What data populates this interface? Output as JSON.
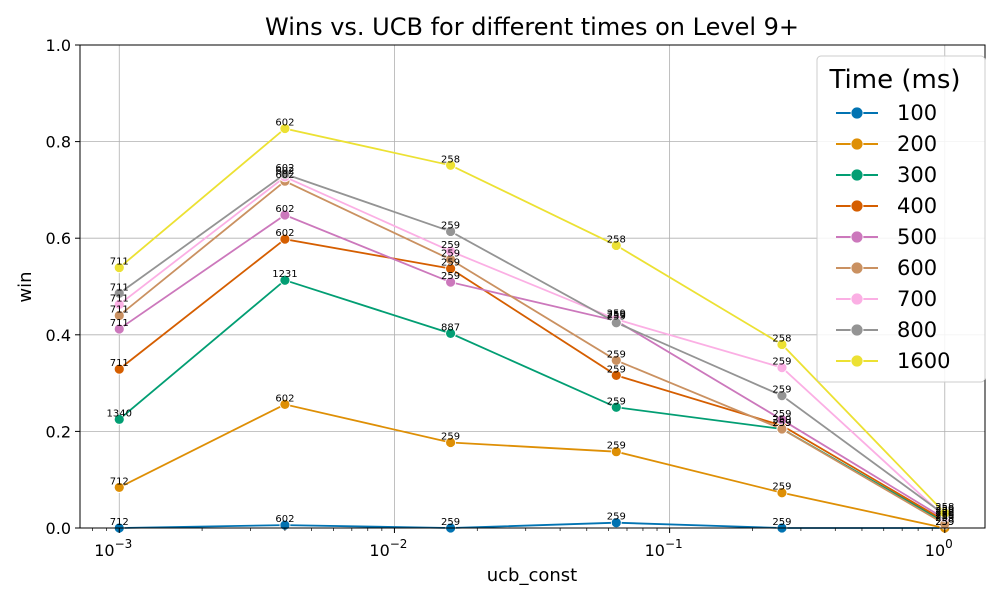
{
  "chart_data": {
    "type": "line",
    "title": "Wins vs. UCB for different times on Level 9+",
    "xlabel": "ucb_const",
    "ylabel": "win",
    "xscale": "log",
    "xlim": [
      0.00072,
      1.4
    ],
    "ylim": [
      0,
      1
    ],
    "grid": true,
    "legend": {
      "title": "Time (ms)",
      "placement": "top-right"
    },
    "x": [
      0.001,
      0.004,
      0.016,
      0.064,
      0.256,
      1.0
    ],
    "xticks": [
      {
        "value": 0.001,
        "base": "10",
        "exp": "−3"
      },
      {
        "value": 0.01,
        "base": "10",
        "exp": "−2"
      },
      {
        "value": 0.1,
        "base": "10",
        "exp": "−1"
      },
      {
        "value": 1,
        "base": "10",
        "exp": "0"
      }
    ],
    "yticks": [
      {
        "value": 0.0,
        "label": "0.0"
      },
      {
        "value": 0.2,
        "label": "0.2"
      },
      {
        "value": 0.4,
        "label": "0.4"
      },
      {
        "value": 0.6,
        "label": "0.6"
      },
      {
        "value": 0.8,
        "label": "0.8"
      },
      {
        "value": 1.0,
        "label": "1.0"
      }
    ],
    "series": [
      {
        "name": "100",
        "color": "#0173b2",
        "values": [
          0.0,
          0.006,
          0.0,
          0.011,
          0.0,
          0.0
        ],
        "labels": [
          "712",
          "602",
          "259",
          "259",
          "259",
          "259"
        ]
      },
      {
        "name": "200",
        "color": "#de8f05",
        "values": [
          0.084,
          0.256,
          0.177,
          0.158,
          0.073,
          0.0
        ],
        "labels": [
          "712",
          "602",
          "259",
          "259",
          "259",
          "259"
        ]
      },
      {
        "name": "300",
        "color": "#029e73",
        "values": [
          0.225,
          0.513,
          0.403,
          0.25,
          0.205,
          0.012
        ],
        "labels": [
          "1340",
          "1231",
          "887",
          "259",
          "259",
          "259"
        ]
      },
      {
        "name": "400",
        "color": "#d55e00",
        "values": [
          0.329,
          0.598,
          0.537,
          0.316,
          0.212,
          0.015
        ],
        "labels": [
          "711",
          "602",
          "259",
          "259",
          "259",
          "259"
        ]
      },
      {
        "name": "500",
        "color": "#cc78bc",
        "values": [
          0.412,
          0.648,
          0.509,
          0.429,
          0.224,
          0.019
        ],
        "labels": [
          "711",
          "602",
          "259",
          "259",
          "259",
          "259"
        ]
      },
      {
        "name": "600",
        "color": "#ca9161",
        "values": [
          0.44,
          0.718,
          0.556,
          0.347,
          0.205,
          0.008
        ],
        "labels": [
          "711",
          "602",
          "259",
          "259",
          "259",
          "259"
        ]
      },
      {
        "name": "700",
        "color": "#fbafe4",
        "values": [
          0.463,
          0.727,
          0.573,
          0.432,
          0.332,
          0.023
        ],
        "labels": [
          "711",
          "602",
          "259",
          "259",
          "259",
          "259"
        ]
      },
      {
        "name": "800",
        "color": "#949494",
        "values": [
          0.486,
          0.733,
          0.614,
          0.425,
          0.274,
          0.027
        ],
        "labels": [
          "711",
          "602",
          "259",
          "259",
          "259",
          "259"
        ]
      },
      {
        "name": "1600",
        "color": "#ece133",
        "values": [
          0.539,
          0.827,
          0.751,
          0.585,
          0.38,
          0.031
        ],
        "labels": [
          "711",
          "602",
          "258",
          "258",
          "258",
          "258"
        ]
      }
    ]
  }
}
